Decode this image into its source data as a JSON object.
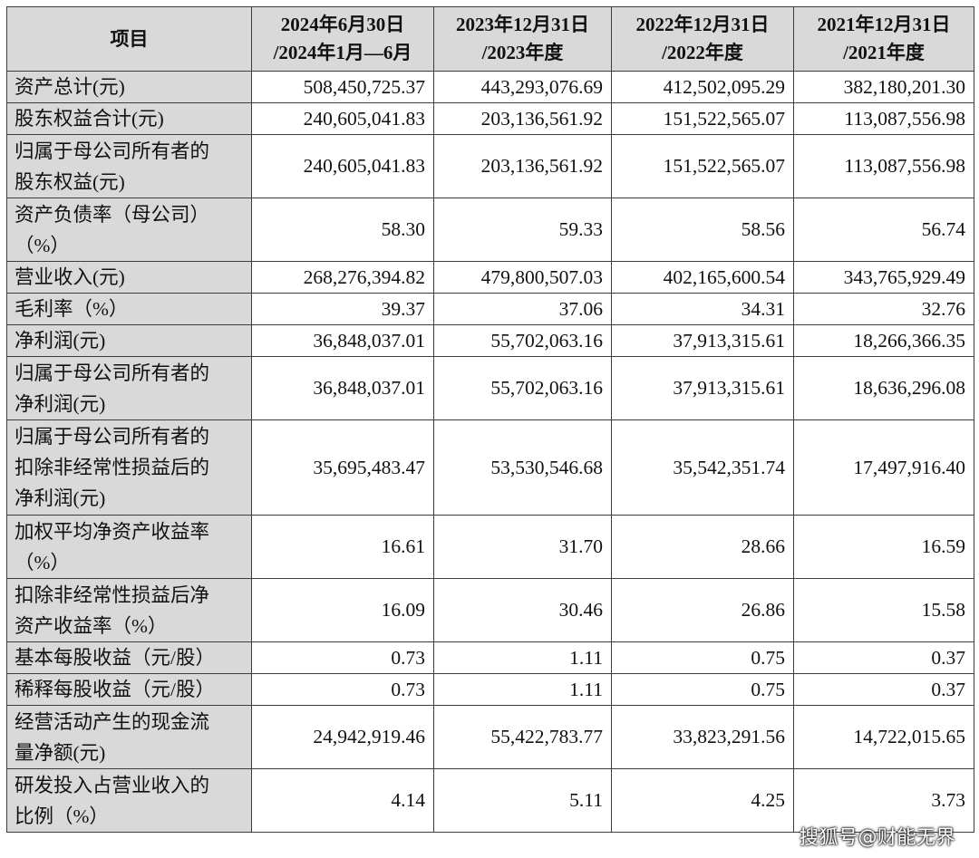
{
  "header": {
    "item": "项目",
    "periods": [
      {
        "line1": "2024年6月30日",
        "line2": "/2024年1月—6月"
      },
      {
        "line1": "2023年12月31日",
        "line2": "/2023年度"
      },
      {
        "line1": "2022年12月31日",
        "line2": "/2022年度"
      },
      {
        "line1": "2021年12月31日",
        "line2": "/2021年度"
      }
    ]
  },
  "rows": [
    {
      "label": [
        "资产总计(元)"
      ],
      "values": [
        "508,450,725.37",
        "443,293,076.69",
        "412,502,095.29",
        "382,180,201.30"
      ]
    },
    {
      "label": [
        "股东权益合计(元)"
      ],
      "values": [
        "240,605,041.83",
        "203,136,561.92",
        "151,522,565.07",
        "113,087,556.98"
      ]
    },
    {
      "label": [
        "归属于母公司所有者的",
        "股东权益(元)"
      ],
      "values": [
        "240,605,041.83",
        "203,136,561.92",
        "151,522,565.07",
        "113,087,556.98"
      ]
    },
    {
      "label": [
        "资产负债率（母公司）",
        "（%）"
      ],
      "values": [
        "58.30",
        "59.33",
        "58.56",
        "56.74"
      ]
    },
    {
      "label": [
        "营业收入(元)"
      ],
      "values": [
        "268,276,394.82",
        "479,800,507.03",
        "402,165,600.54",
        "343,765,929.49"
      ]
    },
    {
      "label": [
        "毛利率（%）"
      ],
      "values": [
        "39.37",
        "37.06",
        "34.31",
        "32.76"
      ]
    },
    {
      "label": [
        "净利润(元)"
      ],
      "values": [
        "36,848,037.01",
        "55,702,063.16",
        "37,913,315.61",
        "18,266,366.35"
      ]
    },
    {
      "label": [
        "归属于母公司所有者的",
        "净利润(元)"
      ],
      "values": [
        "36,848,037.01",
        "55,702,063.16",
        "37,913,315.61",
        "18,636,296.08"
      ]
    },
    {
      "label": [
        "归属于母公司所有者的",
        "扣除非经常性损益后的",
        "净利润(元)"
      ],
      "values": [
        "35,695,483.47",
        "53,530,546.68",
        "35,542,351.74",
        "17,497,916.40"
      ]
    },
    {
      "label": [
        "加权平均净资产收益率",
        "（%）"
      ],
      "values": [
        "16.61",
        "31.70",
        "28.66",
        "16.59"
      ]
    },
    {
      "label": [
        "扣除非经常性损益后净",
        "资产收益率（%）"
      ],
      "values": [
        "16.09",
        "30.46",
        "26.86",
        "15.58"
      ]
    },
    {
      "label": [
        "基本每股收益（元/股）"
      ],
      "values": [
        "0.73",
        "1.11",
        "0.75",
        "0.37"
      ]
    },
    {
      "label": [
        "稀释每股收益（元/股）"
      ],
      "values": [
        "0.73",
        "1.11",
        "0.75",
        "0.37"
      ]
    },
    {
      "label": [
        "经营活动产生的现金流",
        "量净额(元)"
      ],
      "values": [
        "24,942,919.46",
        "55,422,783.77",
        "33,823,291.56",
        "14,722,015.65"
      ]
    },
    {
      "label": [
        "研发投入占营业收入的",
        "比例（%）"
      ],
      "values": [
        "4.14",
        "5.11",
        "4.25",
        "3.73"
      ]
    }
  ],
  "watermark": "搜狐号@财能无界"
}
